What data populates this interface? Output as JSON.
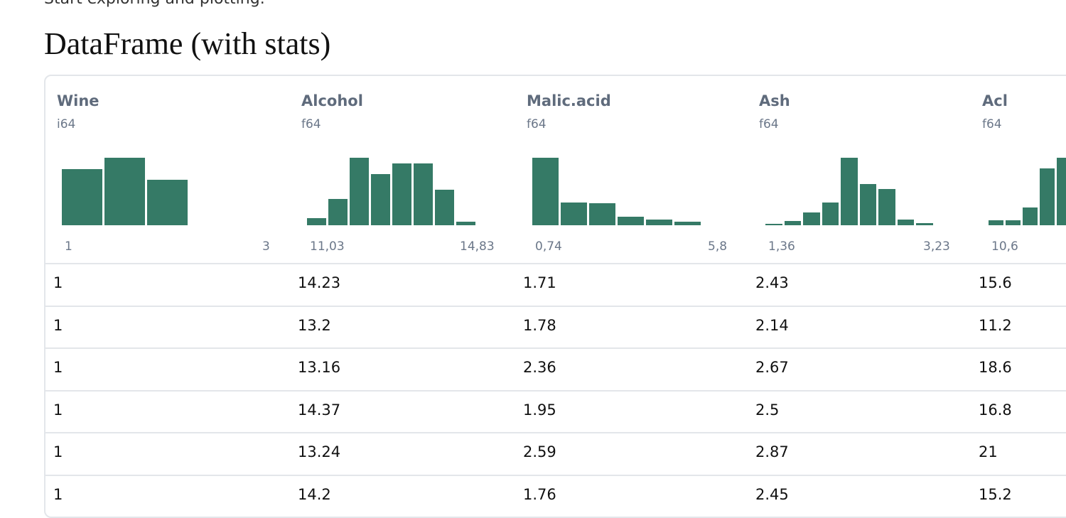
{
  "intro_text": "Start exploring and plotting.",
  "heading": "DataFrame (with stats)",
  "table": {
    "columns": [
      {
        "name": "Wine",
        "dtype": "i64",
        "histogram": [
          59,
          71,
          48
        ],
        "range_min": "1",
        "range_max": "3"
      },
      {
        "name": "Alcohol",
        "dtype": "f64",
        "histogram": [
          4,
          15,
          38,
          29,
          35,
          35,
          20,
          2
        ],
        "range_min": "11,03",
        "range_max": "14,83"
      },
      {
        "name": "Malic.acid",
        "dtype": "f64",
        "histogram": [
          92,
          31,
          30,
          12,
          8,
          5
        ],
        "range_min": "0,74",
        "range_max": "5,8"
      },
      {
        "name": "Ash",
        "dtype": "f64",
        "histogram": [
          1,
          4,
          12,
          21,
          62,
          38,
          33,
          5,
          2
        ],
        "range_min": "1,36",
        "range_max": "3,23"
      },
      {
        "name": "Acl",
        "dtype": "f64",
        "histogram": [
          6,
          6,
          20,
          64,
          76
        ],
        "range_min": "10,6"
      }
    ],
    "rows": [
      [
        1,
        14.23,
        1.71,
        2.43,
        15.6
      ],
      [
        1,
        13.2,
        1.78,
        2.14,
        11.2
      ],
      [
        1,
        13.16,
        2.36,
        2.67,
        18.6
      ],
      [
        1,
        14.37,
        1.95,
        2.5,
        16.8
      ],
      [
        1,
        13.24,
        2.59,
        2.87,
        21
      ],
      [
        1,
        14.2,
        1.76,
        2.45,
        15.2
      ]
    ]
  }
}
